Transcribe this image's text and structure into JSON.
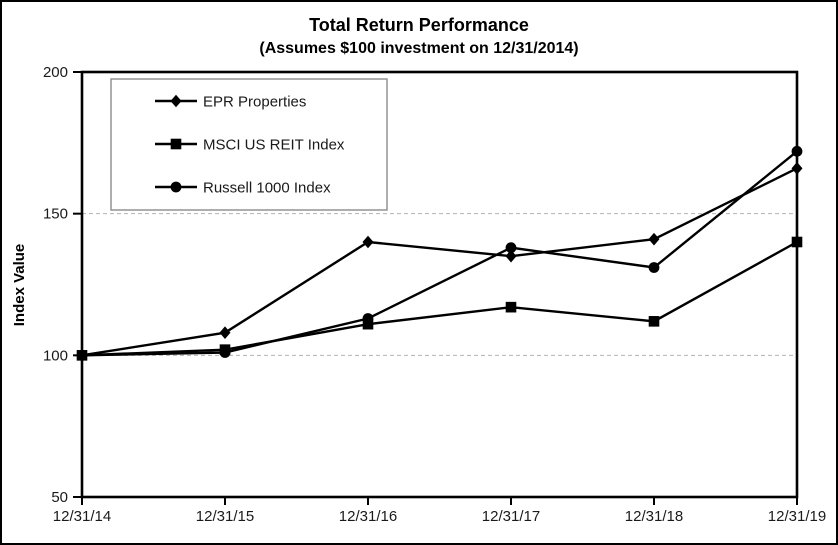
{
  "header": {
    "title": "Total Return Performance",
    "subtitle": "(Assumes $100 investment on 12/31/2014)"
  },
  "chart_data": {
    "type": "line",
    "title": "Total Return Performance",
    "subtitle": "(Assumes $100 investment on 12/31/2014)",
    "xlabel": "",
    "ylabel": "Index Value",
    "categories": [
      "12/31/14",
      "12/31/15",
      "12/31/16",
      "12/31/17",
      "12/31/18",
      "12/31/19"
    ],
    "series": [
      {
        "name": "EPR Properties",
        "marker": "diamond",
        "color": "#000000",
        "values": [
          100,
          108,
          140,
          135,
          141,
          166
        ]
      },
      {
        "name": "MSCI US REIT Index",
        "marker": "square",
        "color": "#000000",
        "values": [
          100,
          102,
          111,
          117,
          112,
          140
        ]
      },
      {
        "name": "Russell 1000 Index",
        "marker": "circle",
        "color": "#000000",
        "values": [
          100,
          101,
          113,
          138,
          131,
          172
        ]
      }
    ],
    "ylim": [
      50,
      200
    ],
    "yticks": [
      50,
      100,
      150,
      200
    ],
    "grid": {
      "dashed_y_values": [
        100,
        150
      ]
    },
    "legend_position": "top-left",
    "colors": {
      "line": "#000000",
      "axis": "#000000",
      "text": "#1a1a1a",
      "grid": "#b3b3b3",
      "legend_border": "#8c8c8c",
      "background": "#ffffff"
    }
  }
}
